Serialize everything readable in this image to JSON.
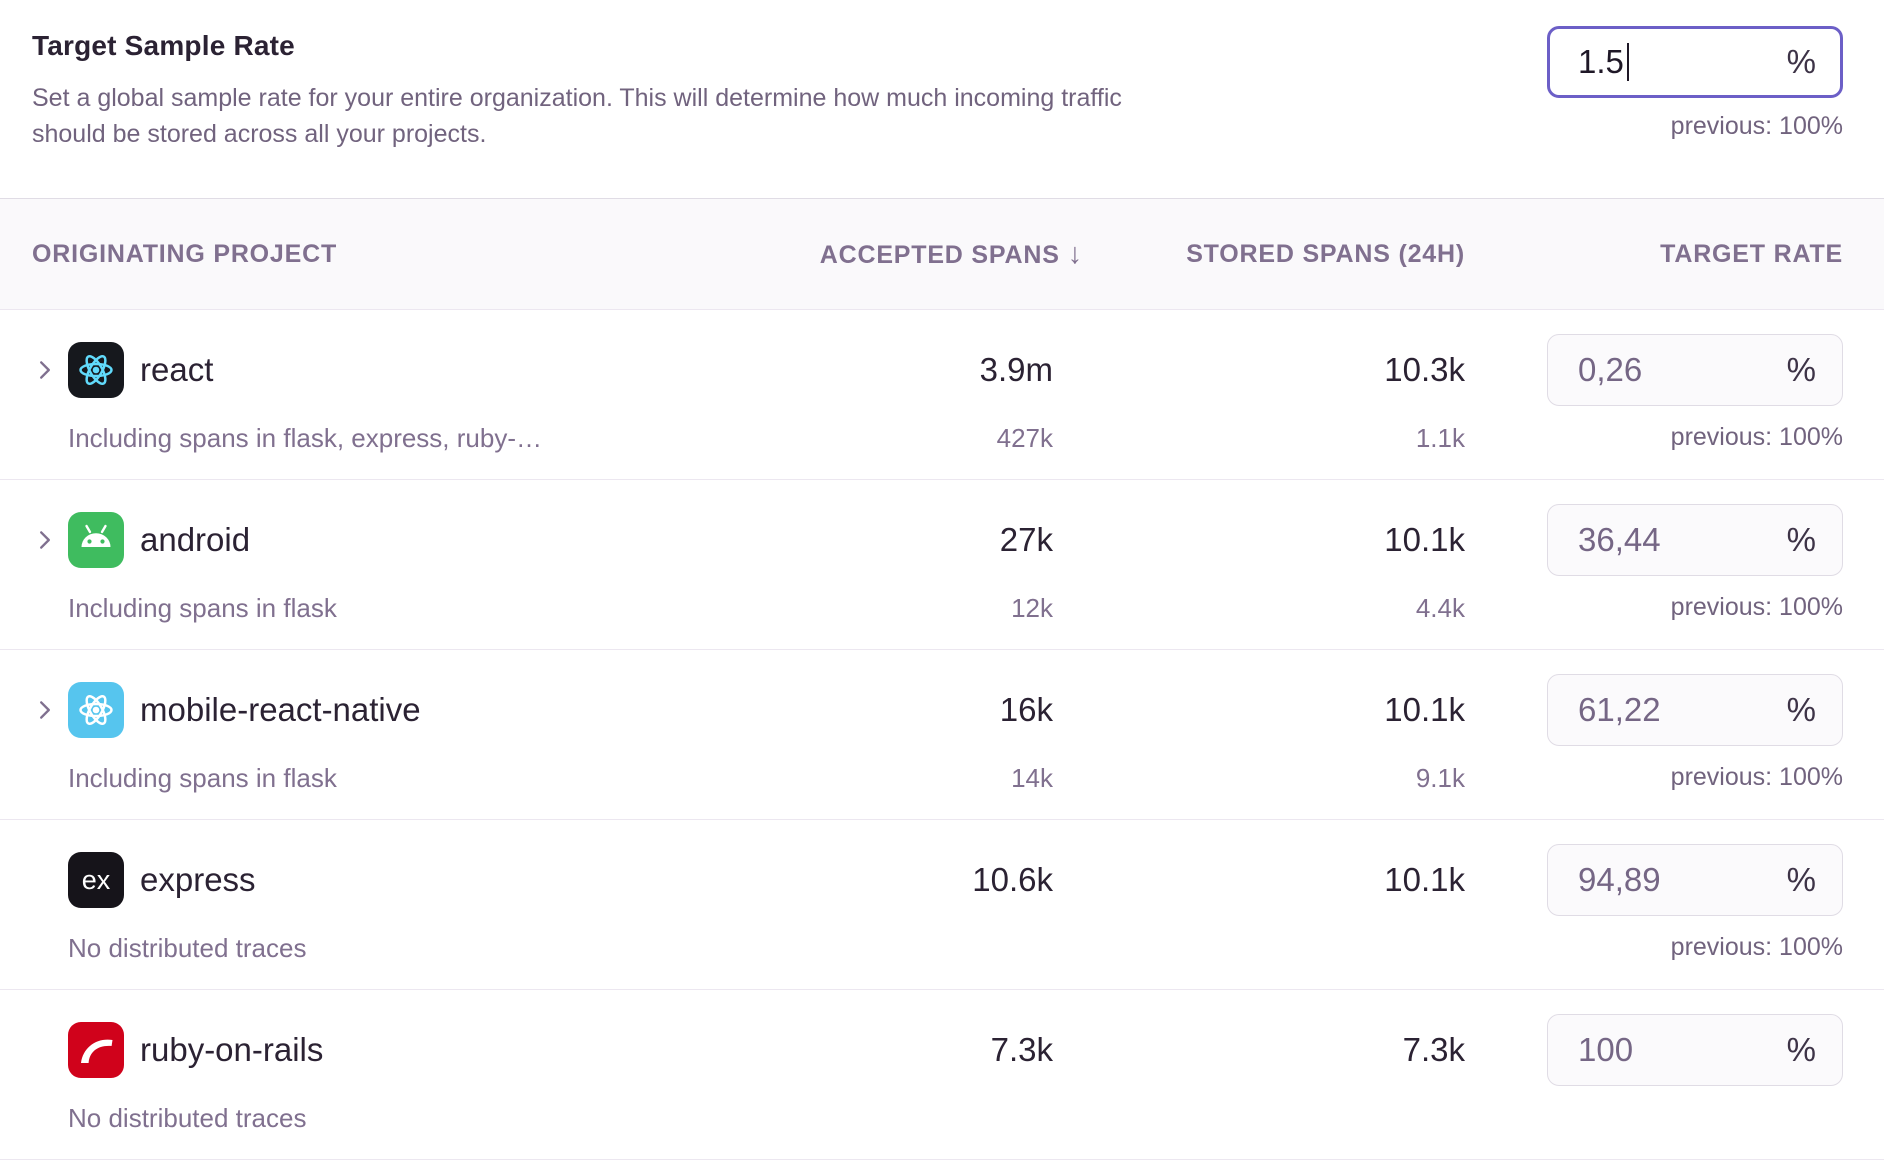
{
  "header": {
    "title": "Target Sample Rate",
    "description": "Set a global sample rate for your entire organization. This will determine how much incoming traffic should be stored across all your projects.",
    "input": {
      "value": "1.5",
      "unit": "%"
    },
    "previous": "previous: 100%"
  },
  "icons": {
    "sort_arrow": "↓",
    "sort_state": "descending on accepted spans"
  },
  "table": {
    "columns": {
      "project": "ORIGINATING PROJECT",
      "accepted": "ACCEPTED SPANS",
      "stored": "STORED SPANS (24H)",
      "target": "TARGET RATE"
    },
    "rows": [
      {
        "project": "react",
        "platform_icon": "react-icon",
        "expandable": true,
        "subtext": "Including spans in flask, express, ruby-…",
        "accepted": "3.9m",
        "accepted_sub": "427k",
        "stored": "10.3k",
        "stored_sub": "1.1k",
        "rate": "0,26",
        "unit": "%",
        "previous": "previous: 100%"
      },
      {
        "project": "android",
        "platform_icon": "android-icon",
        "expandable": true,
        "subtext": "Including spans in flask",
        "accepted": "27k",
        "accepted_sub": "12k",
        "stored": "10.1k",
        "stored_sub": "4.4k",
        "rate": "36,44",
        "unit": "%",
        "previous": "previous: 100%"
      },
      {
        "project": "mobile-react-native",
        "platform_icon": "react-native-icon",
        "expandable": true,
        "subtext": "Including spans in flask",
        "accepted": "16k",
        "accepted_sub": "14k",
        "stored": "10.1k",
        "stored_sub": "9.1k",
        "rate": "61,22",
        "unit": "%",
        "previous": "previous: 100%"
      },
      {
        "project": "express",
        "platform_icon": "express-icon",
        "expandable": false,
        "subtext": "No distributed traces",
        "accepted": "10.6k",
        "accepted_sub": "",
        "stored": "10.1k",
        "stored_sub": "",
        "rate": "94,89",
        "unit": "%",
        "previous": "previous: 100%"
      },
      {
        "project": "ruby-on-rails",
        "platform_icon": "rails-icon",
        "expandable": false,
        "subtext": "No distributed traces",
        "accepted": "7.3k",
        "accepted_sub": "",
        "stored": "7.3k",
        "stored_sub": "",
        "rate": "100",
        "unit": "%",
        "previous": ""
      }
    ]
  },
  "colors": {
    "accent": "#6c5fc7",
    "title_text": "#2b2233",
    "muted_text": "#71637e",
    "faint_text": "#80708f",
    "border": "#e0dce5",
    "divider": "#ece7f0",
    "header_bg": "#faf9fb",
    "input_bg": "#fbfafc",
    "input_value_text": "#756685",
    "react_bg": "#16181d",
    "react_blue": "#61dafb",
    "android_green": "#3fbc5f",
    "react_native_bg": "#56c5ee",
    "express_bg": "#16141a",
    "rails_red": "#d0021b"
  }
}
